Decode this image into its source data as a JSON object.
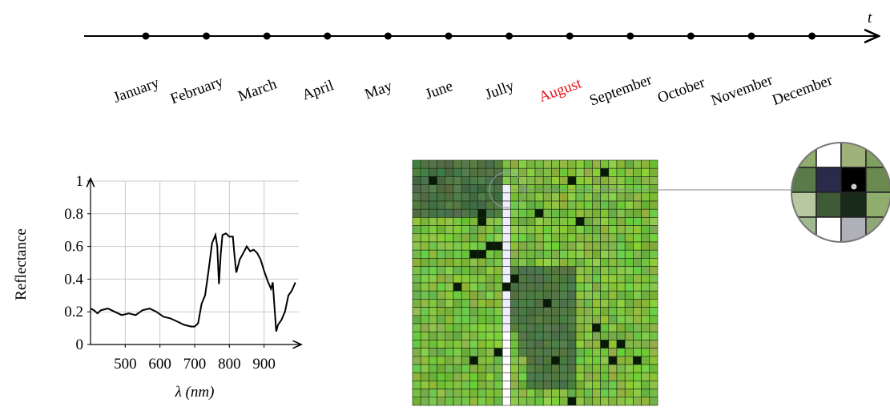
{
  "timeline": {
    "axis_label": "t",
    "months": [
      "January",
      "February",
      "March",
      "April",
      "May",
      "June",
      "Jully",
      "August",
      "September",
      "October",
      "November",
      "December"
    ],
    "highlight_index": 7,
    "highlight_color": "#e8121a"
  },
  "chart_data": {
    "type": "line",
    "xlabel": "λ (nm)",
    "ylabel": "Reflectance",
    "x": [
      400,
      410,
      420,
      430,
      450,
      470,
      490,
      510,
      530,
      550,
      570,
      590,
      610,
      630,
      650,
      670,
      690,
      700,
      710,
      720,
      730,
      740,
      750,
      760,
      765,
      770,
      775,
      780,
      790,
      800,
      810,
      815,
      820,
      830,
      840,
      850,
      860,
      870,
      880,
      890,
      900,
      910,
      920,
      925,
      935,
      940,
      950,
      960,
      970,
      980,
      990
    ],
    "series": [
      {
        "color": "#000000",
        "values": [
          0.22,
          0.21,
          0.19,
          0.21,
          0.22,
          0.2,
          0.18,
          0.19,
          0.18,
          0.21,
          0.22,
          0.2,
          0.17,
          0.16,
          0.14,
          0.12,
          0.11,
          0.11,
          0.13,
          0.25,
          0.3,
          0.45,
          0.62,
          0.67,
          0.6,
          0.37,
          0.55,
          0.67,
          0.68,
          0.66,
          0.66,
          0.54,
          0.44,
          0.52,
          0.56,
          0.6,
          0.57,
          0.58,
          0.56,
          0.52,
          0.45,
          0.39,
          0.34,
          0.38,
          0.08,
          0.12,
          0.15,
          0.2,
          0.3,
          0.33,
          0.38
        ]
      }
    ],
    "xlim": [
      400,
      1000
    ],
    "ylim": [
      0,
      1
    ],
    "xticks": [
      500,
      600,
      700,
      800,
      900
    ],
    "yticks": [
      0,
      0.2,
      0.4,
      0.6,
      0.8,
      1
    ],
    "grid": true
  }
}
